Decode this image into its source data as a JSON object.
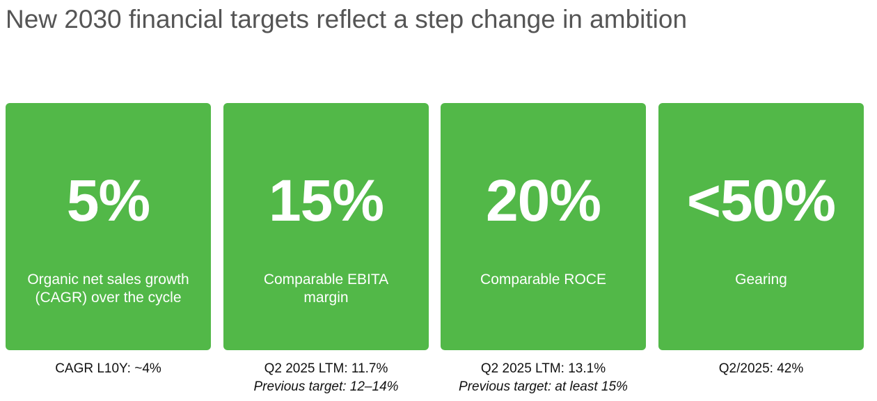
{
  "title": "New 2030 financial targets reflect a step change in ambition",
  "accent_color": "#52b848",
  "cards": [
    {
      "value": "5%",
      "label": "Organic net sales growth (CAGR) over the cycle",
      "note": "CAGR L10Y: ~4%",
      "previous": ""
    },
    {
      "value": "15%",
      "label": "Comparable EBITA margin",
      "note": "Q2 2025 LTM: 11.7%",
      "previous": "Previous target: 12–14%"
    },
    {
      "value": "20%",
      "label": "Comparable ROCE",
      "note": "Q2 2025 LTM: 13.1%",
      "previous": "Previous target: at least 15%"
    },
    {
      "value": "<50%",
      "label": "Gearing",
      "note": "Q2/2025: 42%",
      "previous": ""
    }
  ]
}
